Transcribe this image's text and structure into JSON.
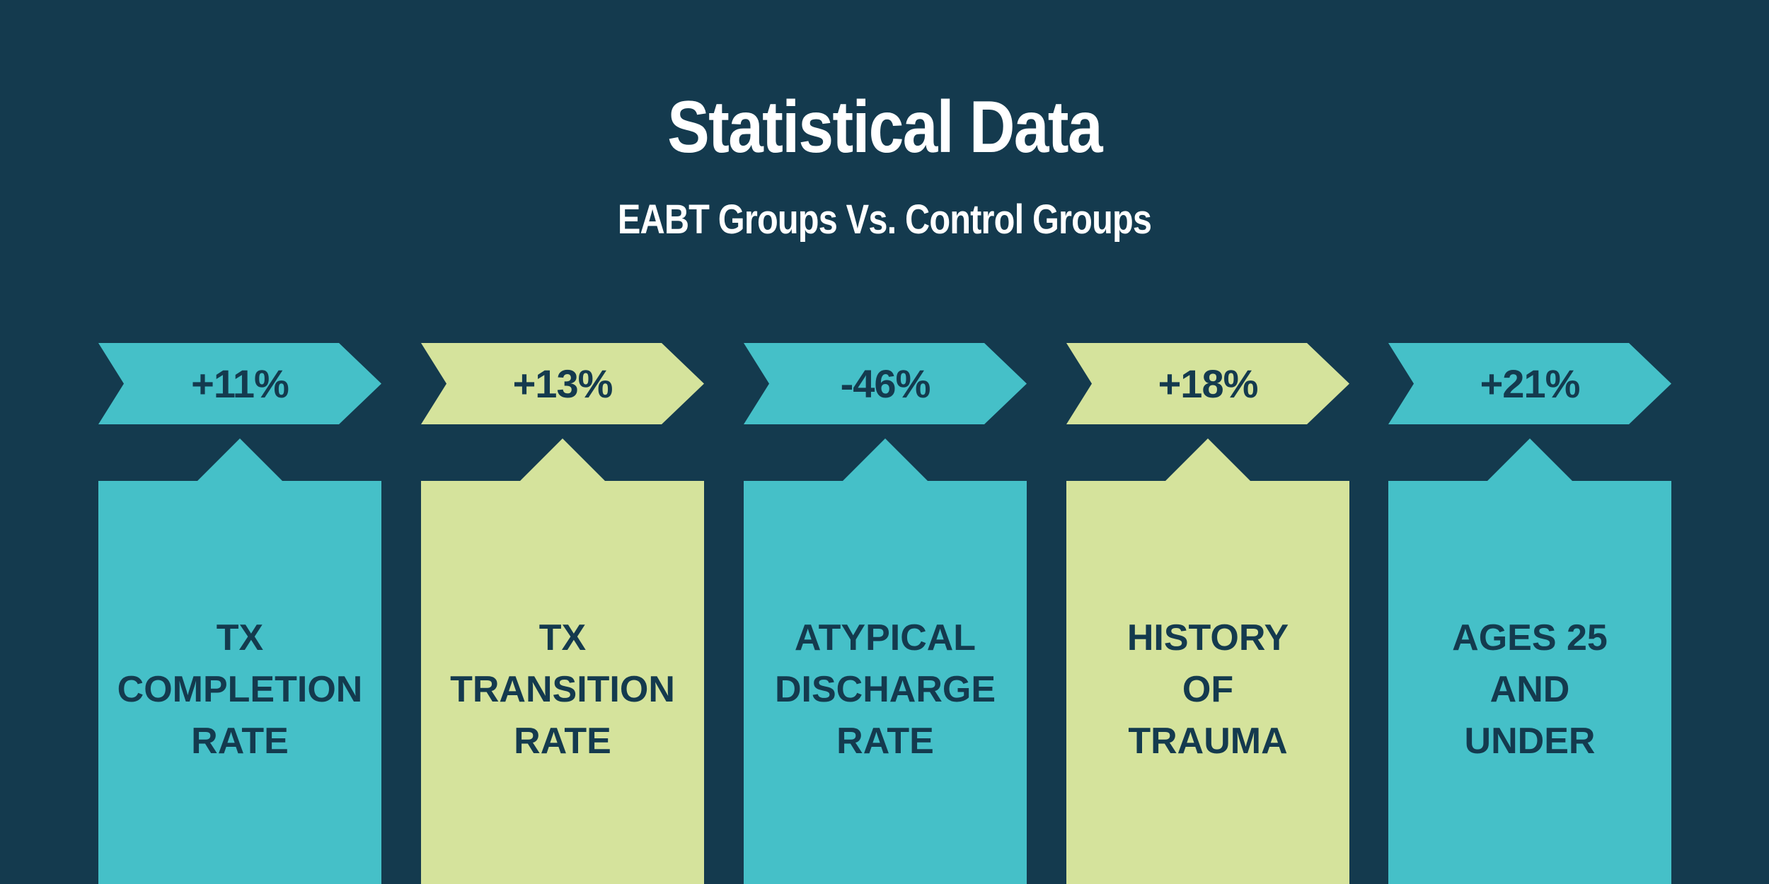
{
  "title": "Statistical Data",
  "subtitle": "EABT Groups Vs. Control Groups",
  "colors": {
    "background": "#143a4e",
    "teal": "#45c0c8",
    "lime": "#d5e39c",
    "text_dark": "#143a4e",
    "text_light": "#ffffff"
  },
  "items": [
    {
      "stat": "+11%",
      "label": "TX\nCOMPLETION\nRATE",
      "color": "teal"
    },
    {
      "stat": "+13%",
      "label": "TX\nTRANSITION\nRATE",
      "color": "lime"
    },
    {
      "stat": "-46%",
      "label": "ATYPICAL\nDISCHARGE\nRATE",
      "color": "teal"
    },
    {
      "stat": "+18%",
      "label": "HISTORY\nOF\nTRAUMA",
      "color": "lime"
    },
    {
      "stat": "+21%",
      "label": "AGES 25\nAND\nUNDER",
      "color": "teal"
    }
  ]
}
